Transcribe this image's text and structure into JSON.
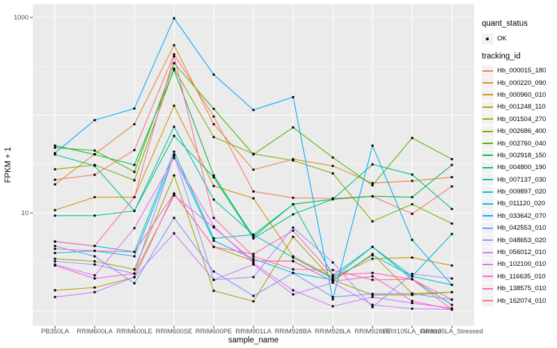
{
  "chart_data": {
    "type": "line",
    "title": "",
    "xlabel": "sample_name",
    "ylabel": "FPKM + 1",
    "y_scale": "log10",
    "ylim": [
      1,
      1100
    ],
    "y_tick_labels": [
      {
        "label": "1000",
        "value": 1000
      },
      {
        "label": "10",
        "value": 10
      }
    ],
    "y_major_gridlines": [
      1,
      10,
      100,
      1000
    ],
    "y_minor_gridlines": [
      3.162,
      31.62,
      316.2
    ],
    "grid": true,
    "legend_position": "right",
    "panel_background": "#ebebeb",
    "gridline_color": "#ffffff",
    "point_color": "#000000",
    "categories": [
      "PB350LA",
      "RRIM600LA",
      "RRIM600LE",
      "RRIM600SE",
      "RRIM600PE",
      "RRIM901LA",
      "RRIM928BA",
      "RRIM928LA",
      "RRIM928LE",
      "RRII105LA_Control",
      "RRII105LA_Stressed"
    ],
    "series": [
      {
        "name": "Hb_000015_180",
        "color": "#F8766D",
        "values": [
          21.9,
          24.6,
          44,
          420,
          97,
          16.6,
          14.3,
          14.1,
          14.8,
          9.8,
          18.7
        ]
      },
      {
        "name": "Hb_000220_090",
        "color": "#E8842C",
        "values": [
          19.6,
          40,
          81,
          520,
          81,
          27.7,
          35.5,
          30.3,
          20.2,
          21.3,
          23.2
        ]
      },
      {
        "name": "Hb_000960_010",
        "color": "#D39200",
        "values": [
          10.7,
          14.5,
          14.5,
          125,
          18.9,
          14.1,
          3.6,
          2.2,
          3.4,
          3.5,
          2.9
        ]
      },
      {
        "name": "Hb_001248_110",
        "color": "#BB9D00",
        "values": [
          1.62,
          1.73,
          2.2,
          15.8,
          4.5,
          3.23,
          3.23,
          2.0,
          3.8,
          1.5,
          1.55
        ]
      },
      {
        "name": "Hb_001504_270",
        "color": "#9FA600",
        "values": [
          3.4,
          3.2,
          2.65,
          24.2,
          1.6,
          1.25,
          5.7,
          2.07,
          1.45,
          1.45,
          1.55
        ]
      },
      {
        "name": "Hb_002686_400",
        "color": "#7CAE00",
        "values": [
          28,
          31,
          21.6,
          300,
          59.7,
          40.3,
          34.4,
          25.4,
          8.2,
          12.3,
          7.8
        ]
      },
      {
        "name": "Hb_002760_040",
        "color": "#49B500",
        "values": [
          46.5,
          43.5,
          26.3,
          340,
          116,
          39.7,
          75,
          36.9,
          19.2,
          58.5,
          35.5
        ]
      },
      {
        "name": "Hb_002918_150",
        "color": "#00BA42",
        "values": [
          48.9,
          39.6,
          31,
          290,
          24.2,
          5.7,
          12.3,
          13.8,
          14.8,
          14.5,
          31
        ]
      },
      {
        "name": "Hb_004800_190",
        "color": "#00BF7C",
        "values": [
          39.6,
          30.4,
          10.5,
          61.5,
          23.1,
          5.5,
          9.7,
          13.8,
          31.4,
          24.7,
          11
        ]
      },
      {
        "name": "Hb_007137_030",
        "color": "#00C1A2",
        "values": [
          9.4,
          9.4,
          10.5,
          76,
          13.7,
          6.0,
          12.3,
          2.3,
          4.5,
          2.1,
          1.15
        ]
      },
      {
        "name": "Hb_009897_020",
        "color": "#00BFC8",
        "values": [
          5.1,
          4.6,
          4.0,
          42.4,
          5.5,
          6.0,
          3.5,
          2.14,
          4.5,
          2.25,
          1.84
        ]
      },
      {
        "name": "Hb_011120_020",
        "color": "#00B9E3",
        "values": [
          3.9,
          4.1,
          3.6,
          38.3,
          5.2,
          3.4,
          2.44,
          2.07,
          3.7,
          2.25,
          6.1
        ]
      },
      {
        "name": "Hb_033642_070",
        "color": "#00ACFC",
        "values": [
          41,
          89,
          117,
          980,
          260,
          113,
          153,
          1.31,
          48.9,
          5.3,
          1.84
        ]
      },
      {
        "name": "Hb_042553_010",
        "color": "#7097FF",
        "values": [
          4.6,
          3.6,
          1.91,
          8.9,
          2.52,
          1.42,
          2.44,
          1.38,
          1.49,
          1.5,
          1.3
        ]
      },
      {
        "name": "Hb_048653_020",
        "color": "#9E8FFF",
        "values": [
          3.2,
          2.97,
          2.4,
          39.6,
          2.07,
          2.21,
          7.1,
          3.12,
          1.09,
          2.38,
          2.14
        ]
      },
      {
        "name": "Hb_056012_010",
        "color": "#C77CFF",
        "values": [
          1.38,
          1.55,
          2.21,
          6.2,
          2.07,
          2.97,
          1.47,
          1.94,
          1.15,
          1.05,
          1.03
        ]
      },
      {
        "name": "Hb_102100_010",
        "color": "#E36EF6",
        "values": [
          2.97,
          2.3,
          7.0,
          36.5,
          7.3,
          3.07,
          1.62,
          1.11,
          1.38,
          1.2,
          1.06
        ]
      },
      {
        "name": "Hb_116635_010",
        "color": "#F763DF",
        "values": [
          2.9,
          2.14,
          2.4,
          15.1,
          7.1,
          3.23,
          3.2,
          2.0,
          2.25,
          1.26,
          1.03
        ]
      },
      {
        "name": "Hb_138575_010",
        "color": "#FF62BC",
        "values": [
          4.3,
          4.1,
          4.0,
          15.8,
          4.5,
          3.8,
          6.6,
          2.32,
          2.44,
          2.1,
          1.03
        ]
      },
      {
        "name": "Hb_162074_010",
        "color": "#FF689C",
        "values": [
          5.1,
          4.6,
          14.5,
          400,
          8.9,
          3.6,
          2.65,
          2.61,
          2.07,
          2.1,
          1.3
        ]
      }
    ]
  },
  "legend": {
    "quant_status_title": "quant_status",
    "quant_status_items": [
      {
        "label": "OK"
      }
    ],
    "tracking_id_title": "tracking_id"
  }
}
